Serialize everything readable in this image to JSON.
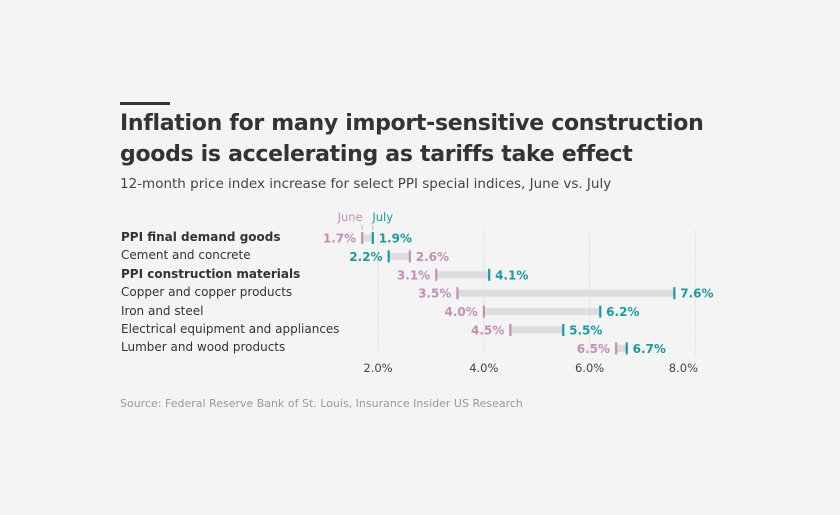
{
  "title": "Inflation for many import-sensitive construction goods is accelerating as tariffs take effect",
  "subtitle": "12-month price index increase for select PPI special indices, June vs. July",
  "source": "Source: Federal Reserve Bank of St. Louis, Insurance Insider US Research",
  "colors": {
    "june": "#c48fb0",
    "july": "#1a9ba1",
    "bar": "#dddddd"
  },
  "chart_data": {
    "type": "dumbbell",
    "legend": {
      "june": "June",
      "july": "July",
      "placement": "top"
    },
    "x_ticks": [
      "2.0%",
      "4.0%",
      "6.0%",
      "8.0%"
    ],
    "x_tick_values": [
      2,
      4,
      6,
      8
    ],
    "xlim": [
      1.3,
      8.4
    ],
    "rows": [
      {
        "category": "PPI final demand goods",
        "bold": true,
        "june": 1.7,
        "july": 1.9,
        "june_label": "1.7%",
        "july_label": "1.9%"
      },
      {
        "category": "Cement and concrete",
        "bold": false,
        "june": 2.6,
        "july": 2.2,
        "june_label": "2.6%",
        "july_label": "2.2%"
      },
      {
        "category": "PPI construction materials",
        "bold": true,
        "june": 3.1,
        "july": 4.1,
        "june_label": "3.1%",
        "july_label": "4.1%"
      },
      {
        "category": "Copper and copper products",
        "bold": false,
        "june": 3.5,
        "july": 7.6,
        "june_label": "3.5%",
        "july_label": "7.6%"
      },
      {
        "category": "Iron and steel",
        "bold": false,
        "june": 4.0,
        "july": 6.2,
        "june_label": "4.0%",
        "july_label": "6.2%"
      },
      {
        "category": "Electrical equipment and appliances",
        "bold": false,
        "june": 4.5,
        "july": 5.5,
        "june_label": "4.5%",
        "july_label": "5.5%"
      },
      {
        "category": "Lumber and wood products",
        "bold": false,
        "june": 6.5,
        "july": 6.7,
        "june_label": "6.5%",
        "july_label": "6.7%"
      }
    ]
  }
}
